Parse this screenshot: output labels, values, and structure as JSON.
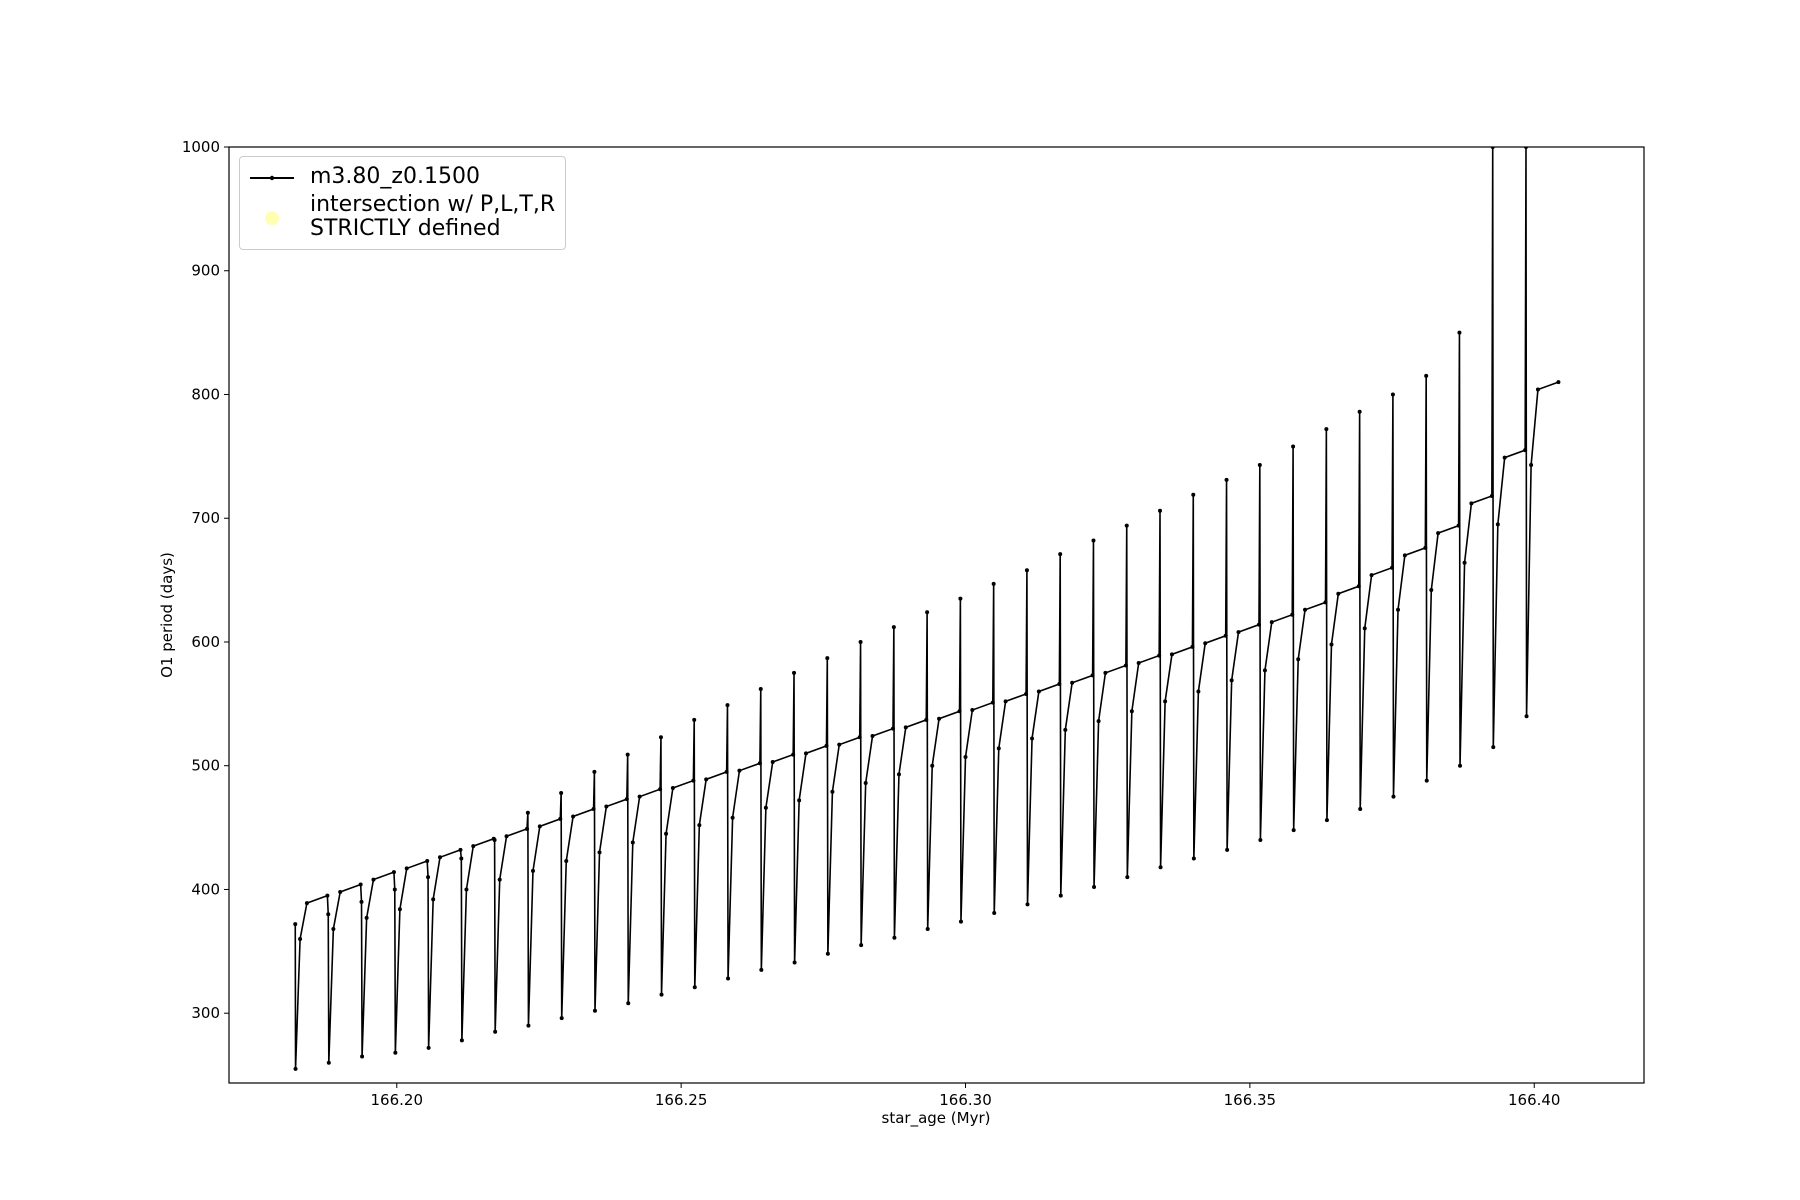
{
  "chart_data": {
    "type": "line",
    "xlabel": "star_age (Myr)",
    "ylabel": "O1 period (days)",
    "xlim": [
      166.1705,
      166.4193
    ],
    "xticks": [
      {
        "value": 166.2,
        "label": "166.20"
      },
      166.25,
      {
        "value": 166.3,
        "label": "166.30"
      },
      166.35,
      {
        "value": 166.4,
        "label": "166.40"
      }
    ],
    "ylim": [
      243.6,
      1000
    ],
    "yticks": [
      300,
      400,
      500,
      600,
      700,
      800,
      900,
      1000
    ],
    "grid": false,
    "legend": "upper left",
    "series": [
      {
        "name": "m3.80_z0.1500",
        "color": "#000000",
        "x": [
          166.18215,
          166.1822,
          166.183,
          166.1842,
          166.1878,
          166.18795,
          166.18805,
          166.18885,
          166.19005,
          166.19365,
          166.1938,
          166.1939,
          166.1947,
          166.1959,
          166.1995,
          166.19965,
          166.19975,
          166.20055,
          166.20175,
          166.20535,
          166.2055,
          166.2056,
          166.2064,
          166.2076,
          166.2112,
          166.21135,
          166.21145,
          166.21225,
          166.21345,
          166.21705,
          166.2172,
          166.2173,
          166.2181,
          166.2193,
          166.2229,
          166.22305,
          166.22315,
          166.22395,
          166.22515,
          166.22875,
          166.2289,
          166.229,
          166.2298,
          166.231,
          166.2346,
          166.23475,
          166.23485,
          166.23565,
          166.23685,
          166.24045,
          166.2406,
          166.2407,
          166.2415,
          166.2427,
          166.2463,
          166.24645,
          166.24655,
          166.24735,
          166.24855,
          166.25215,
          166.2523,
          166.2524,
          166.2532,
          166.2544,
          166.258,
          166.25815,
          166.25825,
          166.25905,
          166.26025,
          166.26385,
          166.264,
          166.2641,
          166.2649,
          166.2661,
          166.2697,
          166.26985,
          166.26995,
          166.27075,
          166.27195,
          166.27555,
          166.2757,
          166.2758,
          166.2766,
          166.2778,
          166.2814,
          166.28155,
          166.28165,
          166.28245,
          166.28365,
          166.28725,
          166.2874,
          166.2875,
          166.2883,
          166.2895,
          166.2931,
          166.29325,
          166.29335,
          166.29415,
          166.29535,
          166.29895,
          166.2991,
          166.2992,
          166.3,
          166.3012,
          166.3048,
          166.30495,
          166.30505,
          166.30585,
          166.30705,
          166.31065,
          166.3108,
          166.3109,
          166.3117,
          166.3129,
          166.3165,
          166.31665,
          166.31675,
          166.31755,
          166.31875,
          166.32235,
          166.3225,
          166.3226,
          166.3234,
          166.3246,
          166.3282,
          166.32835,
          166.32845,
          166.32925,
          166.33045,
          166.33405,
          166.3342,
          166.3343,
          166.3351,
          166.3363,
          166.3399,
          166.34005,
          166.34015,
          166.34095,
          166.34215,
          166.34575,
          166.3459,
          166.346,
          166.3468,
          166.348,
          166.3516,
          166.35175,
          166.35185,
          166.35265,
          166.35385,
          166.35745,
          166.3576,
          166.3577,
          166.3585,
          166.3597,
          166.3633,
          166.36345,
          166.36355,
          166.36435,
          166.36555,
          166.36915,
          166.3693,
          166.3694,
          166.3702,
          166.3714,
          166.375,
          166.37515,
          166.37525,
          166.37605,
          166.37725,
          166.38085,
          166.381,
          166.3811,
          166.3819,
          166.3831,
          166.3867,
          166.38685,
          166.38695,
          166.38775,
          166.38895,
          166.39255,
          166.3927,
          166.3928,
          166.3936,
          166.3948,
          166.3984,
          166.39855,
          166.39865,
          166.39945,
          166.40065,
          166.40425
        ],
        "values": [
          372,
          255,
          360,
          389,
          395,
          380,
          260,
          368,
          398,
          404,
          390,
          265,
          377,
          408,
          414,
          400,
          268,
          384,
          417,
          423,
          410,
          272,
          392,
          426,
          432,
          425,
          278,
          400,
          435,
          441,
          440,
          285,
          408,
          443,
          449,
          462,
          290,
          415,
          451,
          457,
          478,
          296,
          423,
          459,
          465,
          495,
          302,
          430,
          467,
          473,
          509,
          308,
          438,
          475,
          481,
          523,
          315,
          445,
          482,
          488,
          537,
          321,
          452,
          489,
          495,
          549,
          328,
          458,
          496,
          502,
          562,
          335,
          466,
          503,
          509,
          575,
          341,
          472,
          510,
          516,
          587,
          348,
          479,
          517,
          523,
          600,
          355,
          486,
          524,
          530,
          612,
          361,
          493,
          531,
          537,
          624,
          368,
          500,
          538,
          544,
          635,
          374,
          507,
          545,
          551,
          647,
          381,
          514,
          552,
          558,
          658,
          388,
          522,
          560,
          566,
          671,
          395,
          529,
          567,
          573,
          682,
          402,
          536,
          575,
          581,
          694,
          410,
          544,
          583,
          589,
          706,
          418,
          552,
          590,
          596,
          719,
          425,
          560,
          599,
          605,
          731,
          432,
          569,
          608,
          614,
          743,
          440,
          577,
          616,
          622,
          758,
          448,
          586,
          626,
          632,
          772,
          456,
          598,
          639,
          645,
          786,
          465,
          611,
          654,
          660,
          800,
          475,
          626,
          670,
          676,
          815,
          488,
          642,
          688,
          694,
          850,
          500,
          664,
          712,
          718,
          1000,
          515,
          695,
          749,
          755,
          1000,
          540,
          743,
          804,
          810
        ]
      },
      {
        "name": "intersection w/ P,L,T,R\nSTRICTLY defined",
        "color": "#ffffb3",
        "x": [],
        "values": []
      }
    ]
  }
}
